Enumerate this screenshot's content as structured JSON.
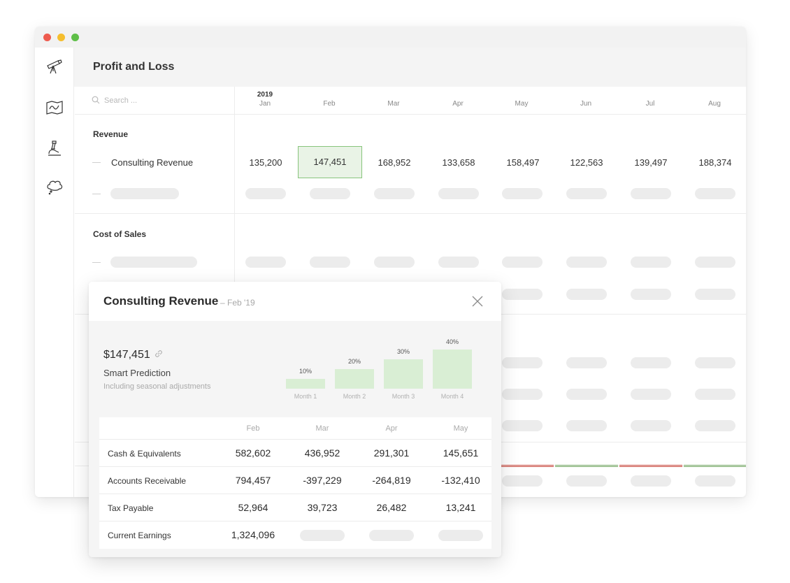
{
  "window": {
    "title": "Profit and Loss"
  },
  "sidebar": {
    "items": [
      {
        "icon": "telescope-icon"
      },
      {
        "icon": "map-icon"
      },
      {
        "icon": "microscope-icon"
      },
      {
        "icon": "thought-cloud-icon"
      }
    ]
  },
  "search": {
    "placeholder": "Search ..."
  },
  "columns": {
    "year": "2019",
    "months": [
      "Jan",
      "Feb",
      "Mar",
      "Apr",
      "May",
      "Jun",
      "Jul",
      "Aug"
    ]
  },
  "sections": {
    "revenue": {
      "title": "Revenue",
      "rows": [
        {
          "label": "Consulting Revenue",
          "values": [
            "135,200",
            "147,451",
            "168,952",
            "133,658",
            "158,497",
            "122,563",
            "139,497",
            "188,374"
          ],
          "selected_month": "Feb"
        }
      ]
    },
    "cost_of_sales": {
      "title": "Cost of Sales"
    }
  },
  "colors": {
    "accent_green": "#88c57c",
    "bar_fill": "#d9eed4",
    "negative_red": "#d04a3f",
    "positive_green": "#77ad66"
  },
  "popup": {
    "title": "Consulting Revenue",
    "subtitle": "– Feb '19",
    "amount": "$147,451",
    "prediction_title": "Smart Prediction",
    "prediction_subtitle": "Including seasonal adjustments",
    "chart": {
      "months": [
        "Month 1",
        "Month 2",
        "Month 3",
        "Month 4"
      ],
      "labels": [
        "10%",
        "20%",
        "30%",
        "40%"
      ],
      "values": [
        10,
        20,
        30,
        40
      ]
    },
    "table": {
      "headers": [
        "Feb",
        "Mar",
        "Apr",
        "May"
      ],
      "rows": [
        {
          "label": "Cash & Equivalents",
          "values": [
            "582,602",
            "436,952",
            "291,301",
            "145,651"
          ]
        },
        {
          "label": "Accounts Receivable",
          "values": [
            "794,457",
            "-397,229",
            "-264,819",
            "-132,410"
          ]
        },
        {
          "label": "Tax Payable",
          "values": [
            "52,964",
            "39,723",
            "26,482",
            "13,241"
          ]
        },
        {
          "label": "Current Earnings",
          "values": [
            "1,324,096"
          ]
        }
      ]
    }
  }
}
